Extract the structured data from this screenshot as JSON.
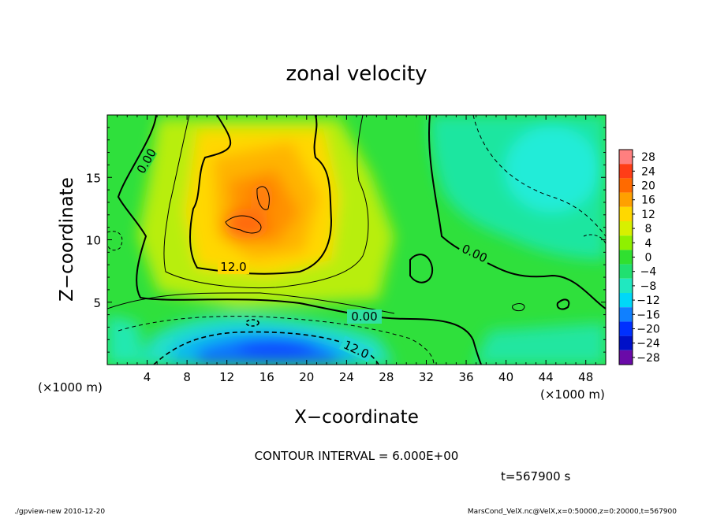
{
  "chart_data": {
    "type": "heatmap",
    "title": "zonal velocity",
    "xlabel": "X−coordinate",
    "ylabel": "Z−coordinate",
    "x_unit": "(×1000 m)",
    "y_unit": "(×1000 m)",
    "xlim": [
      0,
      50
    ],
    "ylim": [
      0,
      20
    ],
    "x_ticks": [
      4,
      8,
      12,
      16,
      20,
      24,
      28,
      32,
      36,
      40,
      44,
      48
    ],
    "y_ticks": [
      5,
      10,
      15
    ],
    "colorbar_labels": [
      "28",
      "24",
      "20",
      "16",
      "12",
      "8",
      "4",
      "0",
      "−4",
      "−8",
      "−12",
      "−16",
      "−20",
      "−24",
      "−28"
    ],
    "colorbar_levels": [
      28,
      24,
      20,
      16,
      12,
      8,
      4,
      0,
      -4,
      -8,
      -12,
      -16,
      -20,
      -24,
      -28
    ],
    "colorbar_colors": [
      "#ff7f7f",
      "#ff3d17",
      "#ff6a00",
      "#ffa000",
      "#ffd800",
      "#d8f000",
      "#8ff000",
      "#30e030",
      "#20e070",
      "#20e8c0",
      "#00d8f8",
      "#1080ff",
      "#0030ff",
      "#0010c8",
      "#6a0aa8"
    ],
    "contour_labels": [
      "0.00",
      "12.0",
      "0.00",
      "12.0",
      "0.00"
    ],
    "contour_interval": "CONTOUR INTERVAL = 6.000E+00",
    "time_label": "t=567900 s",
    "footer_left": "./gpview-new  2010-12-20",
    "footer_right": "MarsCond_VelX.nc@VelX,x=0:50000,z=0:20000,t=567900",
    "features": [
      {
        "x": 14,
        "z": 12,
        "value": 16
      },
      {
        "x": 16,
        "z": 13.5,
        "value": 14
      },
      {
        "x": 18,
        "z": 1.5,
        "value": -16
      },
      {
        "x": 14,
        "z": 2.5,
        "value": -12
      },
      {
        "x": 44,
        "z": 15,
        "value": -9
      },
      {
        "x": 40,
        "z": 12,
        "value": -6
      },
      {
        "x": 20,
        "z": 17,
        "value": 6
      },
      {
        "x": 2,
        "z": 8,
        "value": 2
      }
    ]
  }
}
